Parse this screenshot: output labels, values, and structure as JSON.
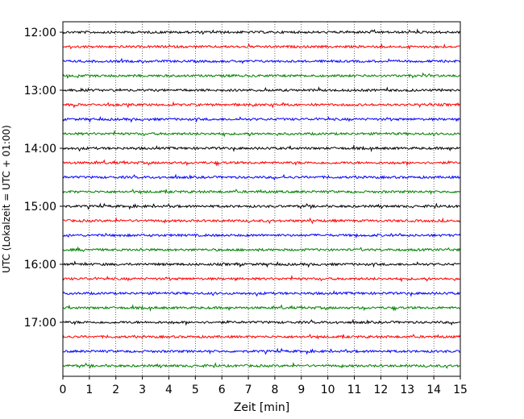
{
  "chart_data": {
    "type": "line",
    "title": "",
    "xlabel": "Zeit  [min]",
    "ylabel": "UTC (Lokalzeit = UTC + 01:00)",
    "xlim": [
      0,
      15
    ],
    "x_ticks": [
      "0",
      "1",
      "2",
      "3",
      "4",
      "5",
      "6",
      "7",
      "8",
      "9",
      "10",
      "11",
      "12",
      "13",
      "14",
      "15"
    ],
    "y_ticks": [
      "12:00",
      "13:00",
      "14:00",
      "15:00",
      "16:00",
      "17:00"
    ],
    "grid": "vertical dotted",
    "series_colors": [
      "#000000",
      "#ff0000",
      "#0000ff",
      "#008000"
    ],
    "trace_start": "12:00",
    "trace_interval_min": 15,
    "trace_count": 24,
    "trace_duration_min": 15
  }
}
